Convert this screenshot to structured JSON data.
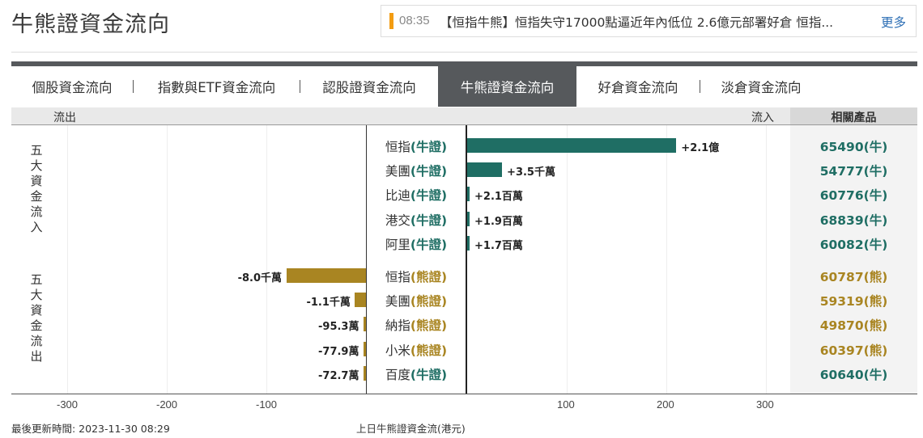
{
  "page": {
    "title": "牛熊證資金流向"
  },
  "ticker": {
    "time": "08:35",
    "headline": "【恒指牛熊】恒指失守17000點逼近年內低位 2.6億元部署好倉 恒指...",
    "more_label": "更多"
  },
  "tabs": [
    {
      "label": "個股資金流向",
      "active": false
    },
    {
      "label": "指數與ETF資金流向",
      "active": false
    },
    {
      "label": "認股證資金流向",
      "active": false
    },
    {
      "label": "牛熊證資金流向",
      "active": true
    },
    {
      "label": "好倉資金流向",
      "active": false
    },
    {
      "label": "淡倉資金流向",
      "active": false
    }
  ],
  "columns": {
    "outflow": "流出",
    "inflow": "流入",
    "products": "相關產品"
  },
  "side_labels": {
    "inflow_top5": "五大資金流入",
    "outflow_top5": "五大資金流出"
  },
  "chart_data": {
    "type": "bar",
    "orientation": "horizontal",
    "unit_label": "上日牛熊證資金流(港元)",
    "axis_ticks": [
      "-300",
      "-200",
      "-100",
      "100",
      "200",
      "300"
    ],
    "xlim": [
      -300,
      300
    ],
    "inflow": [
      {
        "name": "恒指",
        "kind": "(牛證)",
        "value": 210,
        "value_label": "+2.1億",
        "product": "65490(牛)",
        "type": "bull"
      },
      {
        "name": "美團",
        "kind": "(牛證)",
        "value": 35,
        "value_label": "+3.5千萬",
        "product": "54777(牛)",
        "type": "bull"
      },
      {
        "name": "比迪",
        "kind": "(牛證)",
        "value": 2.1,
        "value_label": "+2.1百萬",
        "product": "60776(牛)",
        "type": "bull"
      },
      {
        "name": "港交",
        "kind": "(牛證)",
        "value": 1.9,
        "value_label": "+1.9百萬",
        "product": "68839(牛)",
        "type": "bull"
      },
      {
        "name": "阿里",
        "kind": "(牛證)",
        "value": 1.7,
        "value_label": "+1.7百萬",
        "product": "60082(牛)",
        "type": "bull"
      }
    ],
    "outflow": [
      {
        "name": "恒指",
        "kind": "(熊證)",
        "value": -80,
        "value_label": "-8.0千萬",
        "product": "60787(熊)",
        "type": "bear"
      },
      {
        "name": "美團",
        "kind": "(熊證)",
        "value": -11,
        "value_label": "-1.1千萬",
        "product": "59319(熊)",
        "type": "bear"
      },
      {
        "name": "納指",
        "kind": "(熊證)",
        "value": -0.953,
        "value_label": "-95.3萬",
        "product": "49870(熊)",
        "type": "bear"
      },
      {
        "name": "小米",
        "kind": "(熊證)",
        "value": -0.779,
        "value_label": "-77.9萬",
        "product": "60397(熊)",
        "type": "bear"
      },
      {
        "name": "百度",
        "kind": "(牛證)",
        "value": -0.727,
        "value_label": "-72.7萬",
        "product": "60640(牛)",
        "type": "bull"
      }
    ]
  },
  "footer": {
    "updated": "最後更新時間: 2023-11-30 08:29",
    "caption": "上日牛熊證資金流(港元)"
  }
}
